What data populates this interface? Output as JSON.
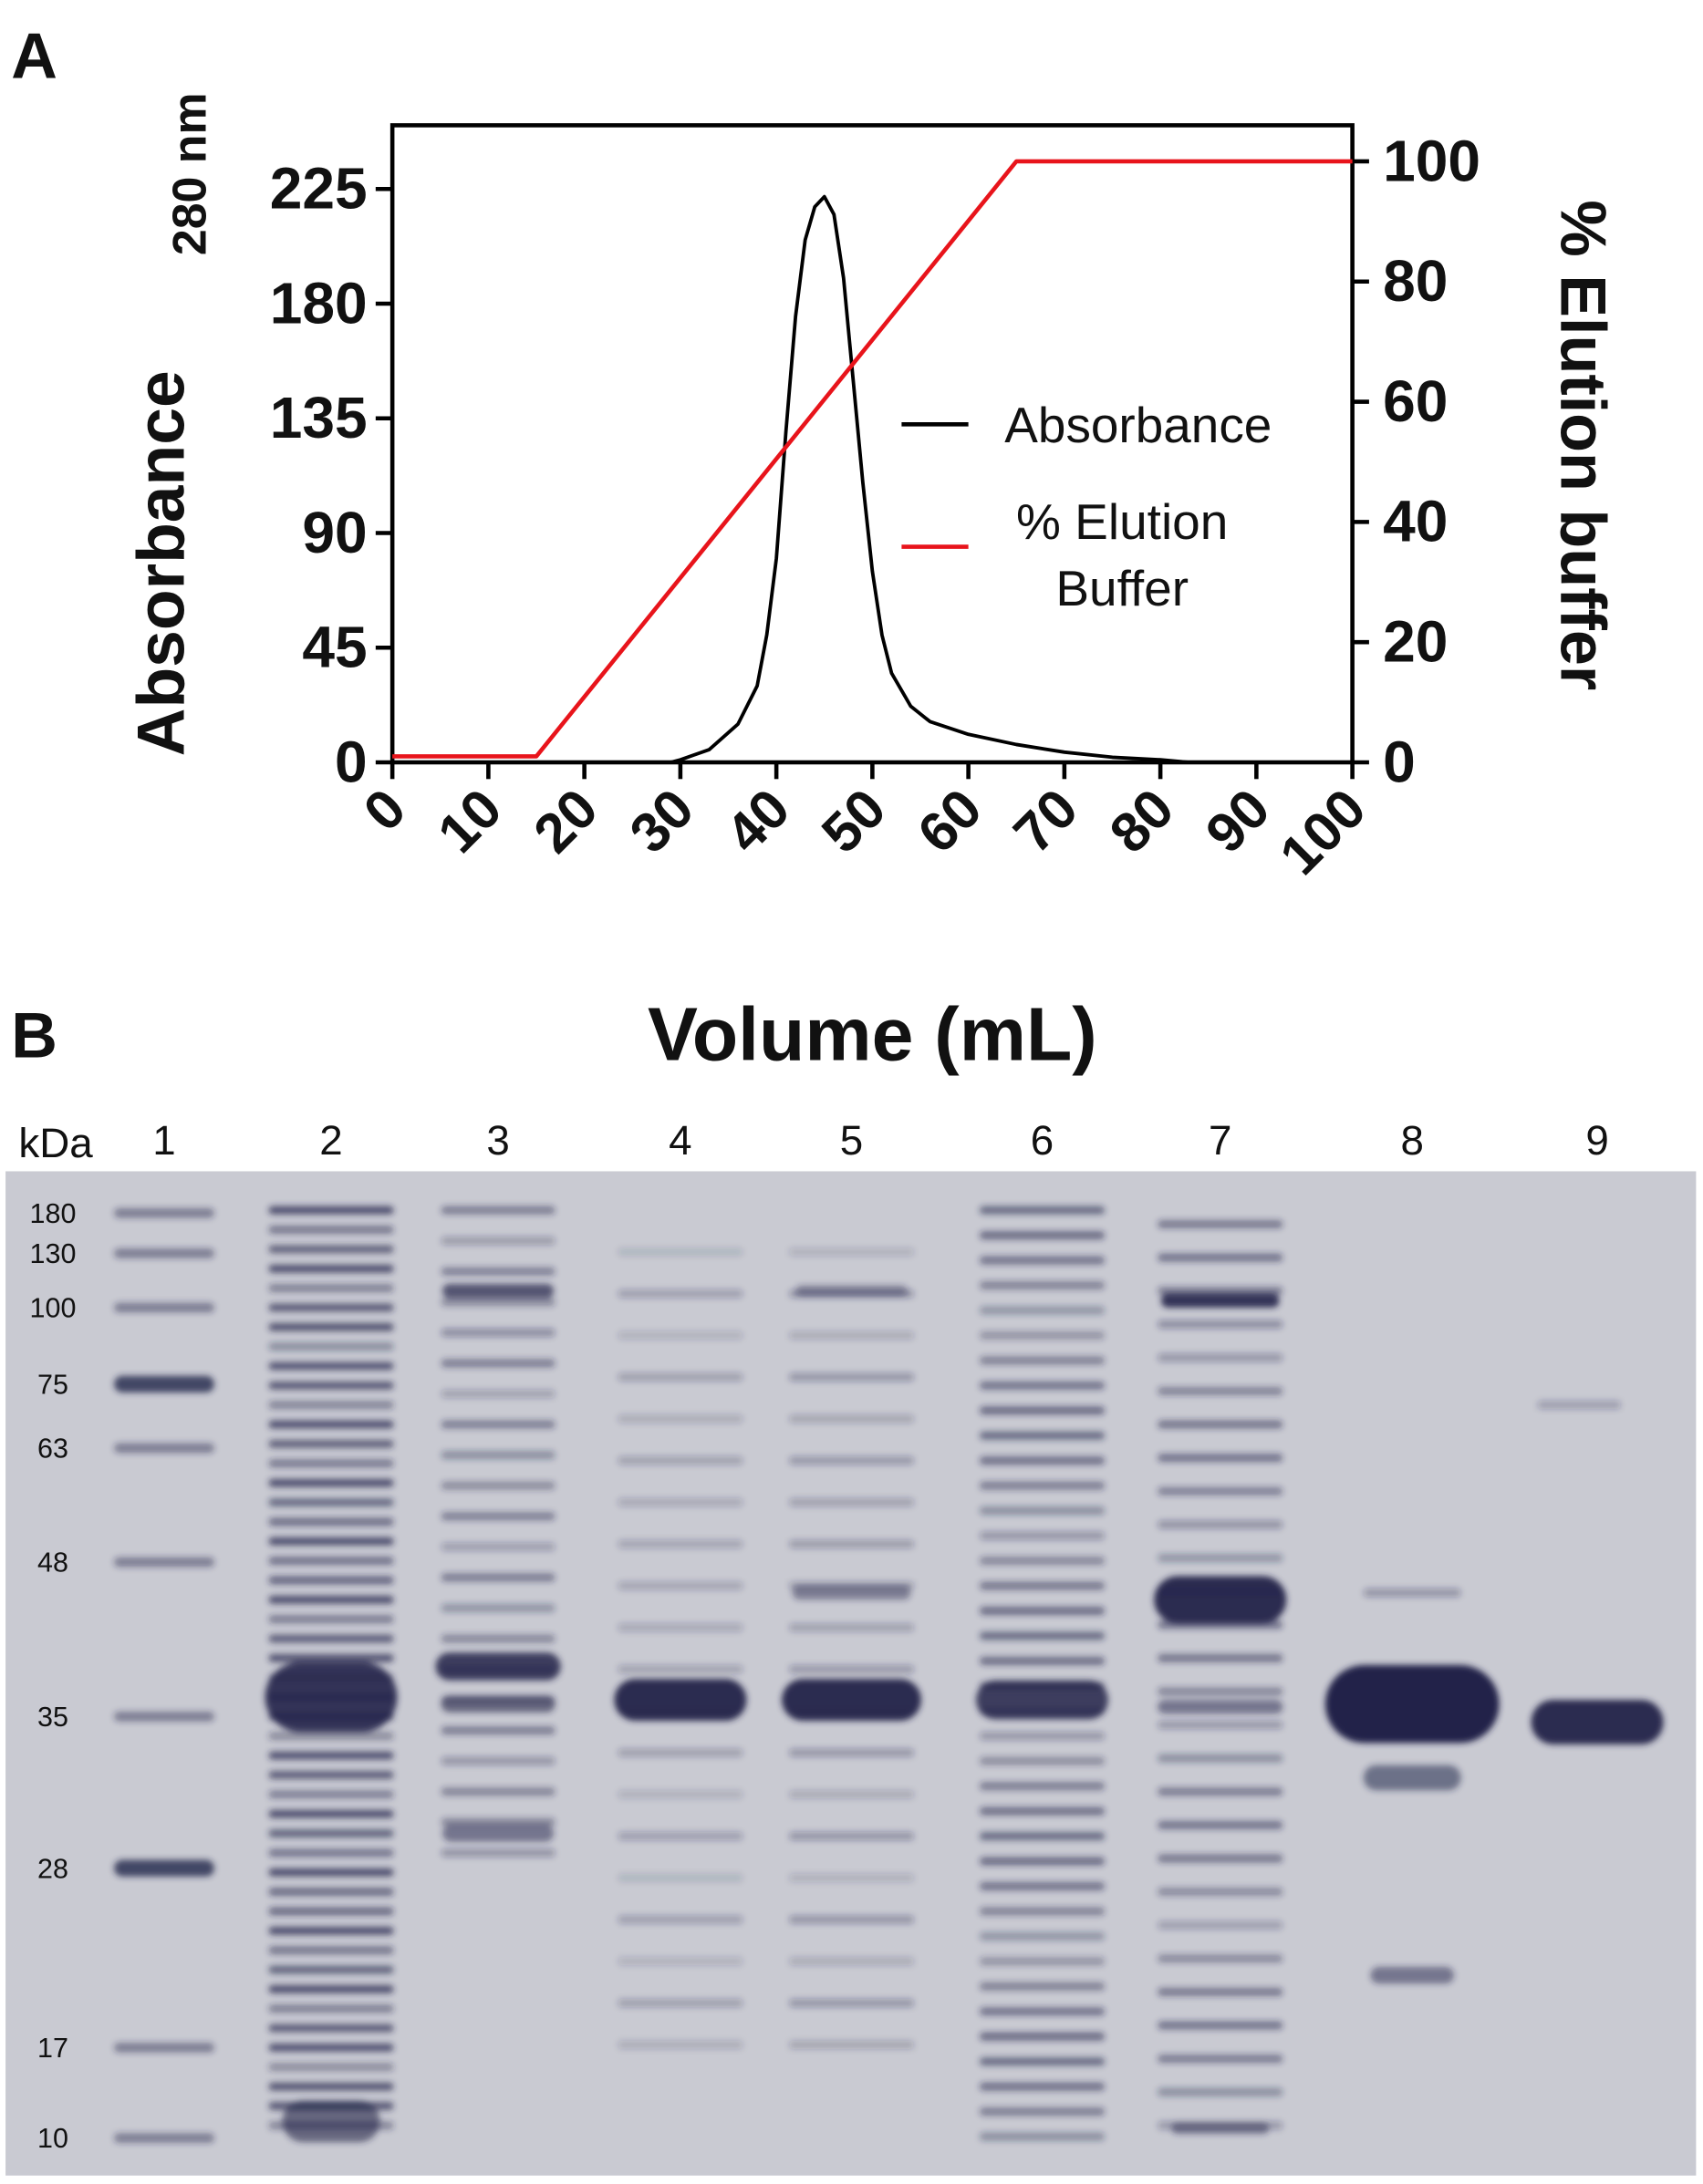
{
  "chart_data": {
    "type": "line",
    "panel_label": "A",
    "x_label": "Volume (mL)",
    "y_label": "Absorbance",
    "y_label_subscript": "280 nm",
    "y2_label": "% Elution buffer",
    "xlim": [
      0,
      100
    ],
    "xticks": [
      0,
      10,
      20,
      30,
      40,
      50,
      60,
      70,
      80,
      90,
      100
    ],
    "ylim": [
      0,
      250
    ],
    "yticks": [
      0,
      45,
      90,
      135,
      180,
      225
    ],
    "y2lim": [
      0,
      106
    ],
    "y2ticks": [
      0,
      20,
      40,
      60,
      80,
      100
    ],
    "legend": "center right",
    "series": [
      {
        "name": "Absorbance",
        "color": "#000000",
        "x": [
          0,
          29,
          30,
          33,
          36,
          38,
          39,
          40,
          41,
          42,
          43,
          44,
          45,
          46,
          47,
          48,
          49,
          50,
          51,
          52,
          54,
          56,
          60,
          65,
          70,
          75,
          80,
          83,
          100
        ],
        "values": [
          0,
          0,
          1,
          5,
          15,
          30,
          50,
          80,
          130,
          175,
          205,
          218,
          222,
          215,
          190,
          150,
          110,
          75,
          50,
          35,
          22,
          16,
          11,
          7,
          4,
          2,
          1,
          0,
          0
        ]
      },
      {
        "name": "% Elution Buffer",
        "color": "#e8141b",
        "axis": "y2",
        "x": [
          0,
          15,
          65,
          100
        ],
        "values": [
          1,
          1,
          100,
          100
        ]
      }
    ]
  },
  "gel": {
    "panel_label": "B",
    "unit": "kDa",
    "lanes": [
      "1",
      "2",
      "3",
      "4",
      "5",
      "6",
      "7",
      "8",
      "9"
    ],
    "markers": [
      "180",
      "130",
      "100",
      "75",
      "63",
      "48",
      "35",
      "28",
      "17",
      "10"
    ]
  }
}
